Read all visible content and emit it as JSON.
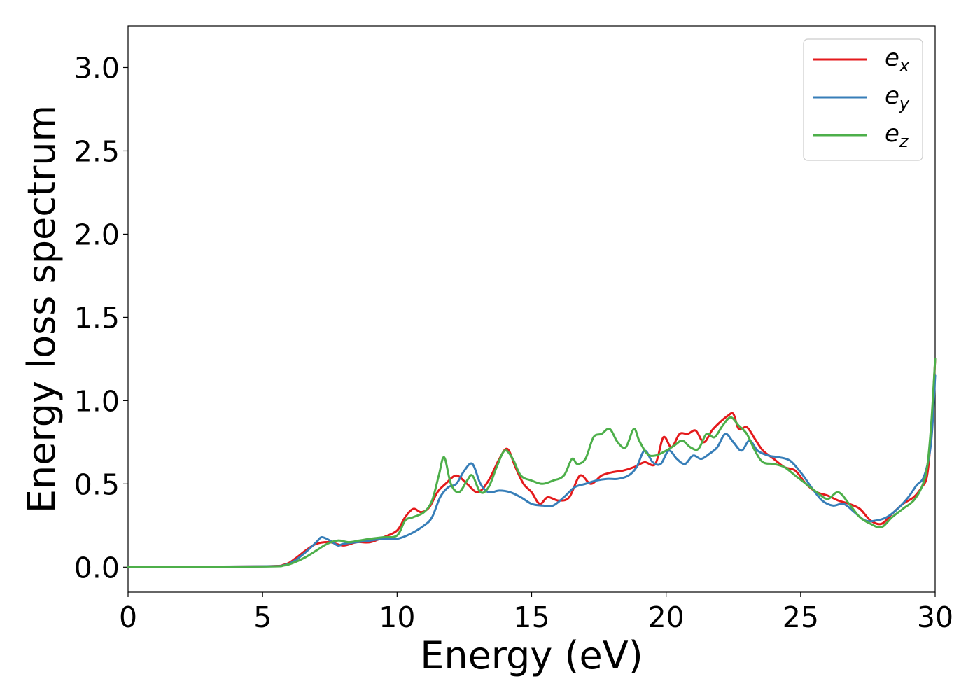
{
  "chart_data": {
    "type": "line",
    "title": "",
    "xlabel": "Energy (eV)",
    "ylabel": "Energy loss spectrum",
    "xlim": [
      0,
      30
    ],
    "ylim": [
      -0.15,
      3.25
    ],
    "xticks": [
      0,
      5,
      10,
      15,
      20,
      25,
      30
    ],
    "xtick_labels": [
      "0",
      "5",
      "10",
      "15",
      "20",
      "25",
      "30"
    ],
    "yticks": [
      0.0,
      0.5,
      1.0,
      1.5,
      2.0,
      2.5,
      3.0
    ],
    "ytick_labels": [
      "0.0",
      "0.5",
      "1.0",
      "1.5",
      "2.0",
      "2.5",
      "3.0"
    ],
    "grid": false,
    "legend_position": "top-right",
    "series": [
      {
        "name": "e",
        "subscript": "x",
        "color": "#e41a1c",
        "x": [
          0,
          5,
          5.8,
          6.2,
          6.6,
          7.0,
          7.5,
          8.0,
          8.5,
          9.0,
          9.5,
          10.0,
          10.3,
          10.6,
          10.9,
          11.2,
          11.5,
          11.8,
          12.2,
          12.6,
          13.0,
          13.4,
          13.8,
          14.1,
          14.4,
          14.7,
          15.0,
          15.3,
          15.6,
          16.0,
          16.4,
          16.8,
          17.2,
          17.6,
          18.0,
          18.4,
          18.8,
          19.2,
          19.6,
          19.9,
          20.2,
          20.5,
          20.8,
          21.1,
          21.4,
          21.7,
          22.0,
          22.3,
          22.5,
          22.7,
          23.0,
          23.3,
          23.6,
          24.0,
          24.4,
          24.8,
          25.2,
          25.6,
          26.0,
          26.4,
          26.8,
          27.2,
          27.6,
          28.0,
          28.4,
          28.8,
          29.2,
          29.5,
          29.7,
          29.85,
          30.0
        ],
        "y": [
          0.0,
          0.005,
          0.015,
          0.05,
          0.1,
          0.14,
          0.15,
          0.13,
          0.15,
          0.15,
          0.18,
          0.22,
          0.3,
          0.35,
          0.33,
          0.36,
          0.45,
          0.5,
          0.55,
          0.5,
          0.45,
          0.52,
          0.65,
          0.71,
          0.6,
          0.5,
          0.45,
          0.38,
          0.42,
          0.4,
          0.42,
          0.55,
          0.5,
          0.55,
          0.57,
          0.58,
          0.6,
          0.63,
          0.62,
          0.78,
          0.72,
          0.8,
          0.8,
          0.82,
          0.75,
          0.82,
          0.87,
          0.91,
          0.92,
          0.83,
          0.84,
          0.77,
          0.7,
          0.65,
          0.6,
          0.58,
          0.5,
          0.45,
          0.43,
          0.4,
          0.38,
          0.35,
          0.28,
          0.26,
          0.32,
          0.38,
          0.42,
          0.48,
          0.55,
          0.8,
          1.25
        ]
      },
      {
        "name": "e",
        "subscript": "y",
        "color": "#377eb8",
        "x": [
          0,
          5,
          5.8,
          6.2,
          6.6,
          7.0,
          7.2,
          7.5,
          7.8,
          8.0,
          8.5,
          9.0,
          9.5,
          10.0,
          10.5,
          11.0,
          11.3,
          11.6,
          11.9,
          12.2,
          12.5,
          12.8,
          13.1,
          13.4,
          13.8,
          14.2,
          14.6,
          15.0,
          15.4,
          15.8,
          16.2,
          16.6,
          17.0,
          17.4,
          17.8,
          18.2,
          18.6,
          18.9,
          19.2,
          19.5,
          19.8,
          20.1,
          20.4,
          20.7,
          21.0,
          21.3,
          21.6,
          21.9,
          22.2,
          22.5,
          22.8,
          23.1,
          23.4,
          23.8,
          24.2,
          24.6,
          25.0,
          25.4,
          25.8,
          26.2,
          26.6,
          27.0,
          27.4,
          27.8,
          28.2,
          28.6,
          29.0,
          29.3,
          29.6,
          29.85,
          30.0
        ],
        "y": [
          0.0,
          0.005,
          0.012,
          0.04,
          0.09,
          0.15,
          0.18,
          0.16,
          0.13,
          0.14,
          0.15,
          0.16,
          0.17,
          0.17,
          0.2,
          0.25,
          0.3,
          0.42,
          0.48,
          0.5,
          0.58,
          0.62,
          0.5,
          0.45,
          0.46,
          0.45,
          0.42,
          0.38,
          0.37,
          0.37,
          0.42,
          0.48,
          0.5,
          0.52,
          0.53,
          0.53,
          0.55,
          0.6,
          0.7,
          0.63,
          0.62,
          0.7,
          0.65,
          0.62,
          0.67,
          0.65,
          0.68,
          0.72,
          0.8,
          0.75,
          0.7,
          0.76,
          0.7,
          0.67,
          0.66,
          0.64,
          0.57,
          0.48,
          0.4,
          0.37,
          0.38,
          0.33,
          0.28,
          0.28,
          0.3,
          0.35,
          0.42,
          0.49,
          0.55,
          0.75,
          1.15
        ]
      },
      {
        "name": "e",
        "subscript": "z",
        "color": "#4daf4a",
        "x": [
          0,
          5,
          5.8,
          6.2,
          6.6,
          7.0,
          7.4,
          7.8,
          8.2,
          8.6,
          9.0,
          9.5,
          10.0,
          10.3,
          10.6,
          11.0,
          11.3,
          11.55,
          11.75,
          12.0,
          12.3,
          12.6,
          12.8,
          13.1,
          13.4,
          13.7,
          14.0,
          14.3,
          14.6,
          15.0,
          15.4,
          15.8,
          16.2,
          16.5,
          16.7,
          17.0,
          17.3,
          17.6,
          17.9,
          18.2,
          18.5,
          18.8,
          19.0,
          19.3,
          19.6,
          20.0,
          20.3,
          20.6,
          20.9,
          21.2,
          21.5,
          21.8,
          22.1,
          22.4,
          22.7,
          23.0,
          23.3,
          23.6,
          24.0,
          24.4,
          24.8,
          25.2,
          25.6,
          26.0,
          26.4,
          26.8,
          27.2,
          27.6,
          28.0,
          28.4,
          28.8,
          29.2,
          29.5,
          29.7,
          29.85,
          30.0
        ],
        "y": [
          0.0,
          0.004,
          0.01,
          0.03,
          0.06,
          0.1,
          0.14,
          0.16,
          0.15,
          0.16,
          0.17,
          0.18,
          0.19,
          0.28,
          0.3,
          0.33,
          0.4,
          0.55,
          0.66,
          0.5,
          0.45,
          0.52,
          0.55,
          0.45,
          0.48,
          0.6,
          0.7,
          0.65,
          0.55,
          0.52,
          0.5,
          0.52,
          0.55,
          0.65,
          0.62,
          0.65,
          0.78,
          0.8,
          0.83,
          0.75,
          0.72,
          0.83,
          0.76,
          0.68,
          0.67,
          0.7,
          0.73,
          0.76,
          0.72,
          0.71,
          0.8,
          0.78,
          0.85,
          0.9,
          0.85,
          0.8,
          0.7,
          0.63,
          0.62,
          0.6,
          0.55,
          0.5,
          0.45,
          0.41,
          0.45,
          0.38,
          0.3,
          0.26,
          0.24,
          0.3,
          0.35,
          0.4,
          0.48,
          0.6,
          0.85,
          1.25
        ]
      }
    ]
  }
}
